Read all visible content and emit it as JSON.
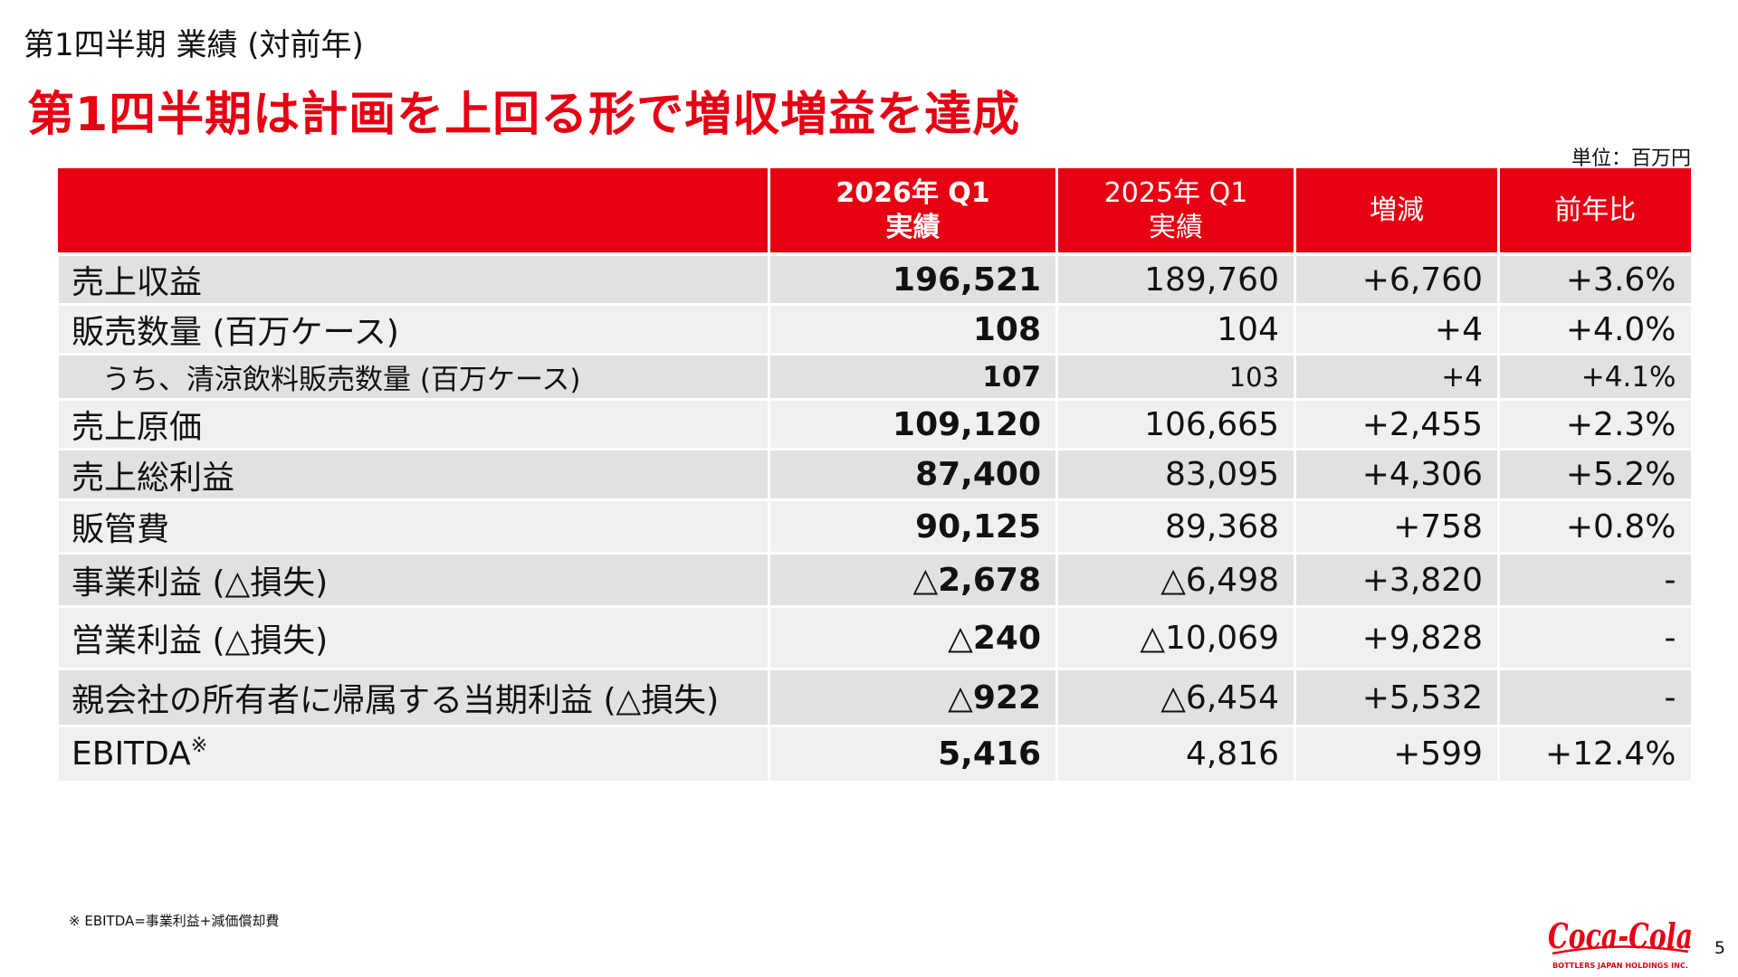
{
  "slide": {
    "subtitle": "第1四半期 業績 (対前年)",
    "headline": "第1四半期は計画を上回る形で増収増益を達成",
    "unit": "単位：百万円",
    "footnote": "※ EBITDA=事業利益+減価償却費",
    "page_number": "5"
  },
  "logo": {
    "script_text": "Coca-Cola",
    "tagline": "BOTTLERS JAPAN HOLDINGS INC.",
    "color": "#e60012"
  },
  "colors": {
    "accent": "#e60012",
    "row_shade": "#e1e1e1",
    "row_light": "#f0f0f0"
  },
  "table": {
    "headers": {
      "current_line1": "2026年 Q1",
      "current_line2": "実績",
      "prior_line1": "2025年 Q1",
      "prior_line2": "実績",
      "change": "増減",
      "yoy": "前年比"
    },
    "rows": [
      {
        "label": "売上収益",
        "current": "196,521",
        "prior": "189,760",
        "change": "+6,760",
        "yoy": "+3.6%"
      },
      {
        "label": "販売数量 (百万ケース)",
        "current": "108",
        "prior": "104",
        "change": "+4",
        "yoy": "+4.0%"
      },
      {
        "label": "うち、清涼飲料販売数量 (百万ケース)",
        "current": "107",
        "prior": "103",
        "change": "+4",
        "yoy": "+4.1%"
      },
      {
        "label": "売上原価",
        "current": "109,120",
        "prior": "106,665",
        "change": "+2,455",
        "yoy": "+2.3%"
      },
      {
        "label": "売上総利益",
        "current": "87,400",
        "prior": "83,095",
        "change": "+4,306",
        "yoy": "+5.2%"
      },
      {
        "label": "販管費",
        "current": "90,125",
        "prior": "89,368",
        "change": "+758",
        "yoy": "+0.8%"
      },
      {
        "label": "事業利益 (△損失)",
        "current": "△2,678",
        "prior": "△6,498",
        "change": "+3,820",
        "yoy": "-"
      },
      {
        "label": "営業利益 (△損失)",
        "current": "△240",
        "prior": "△10,069",
        "change": "+9,828",
        "yoy": "-"
      },
      {
        "label": "親会社の所有者に帰属する当期利益 (△損失)",
        "current": "△922",
        "prior": "△6,454",
        "change": "+5,532",
        "yoy": "-"
      },
      {
        "label": "EBITDA",
        "label_note": "※",
        "current": "5,416",
        "prior": "4,816",
        "change": "+599",
        "yoy": "+12.4%"
      }
    ]
  }
}
